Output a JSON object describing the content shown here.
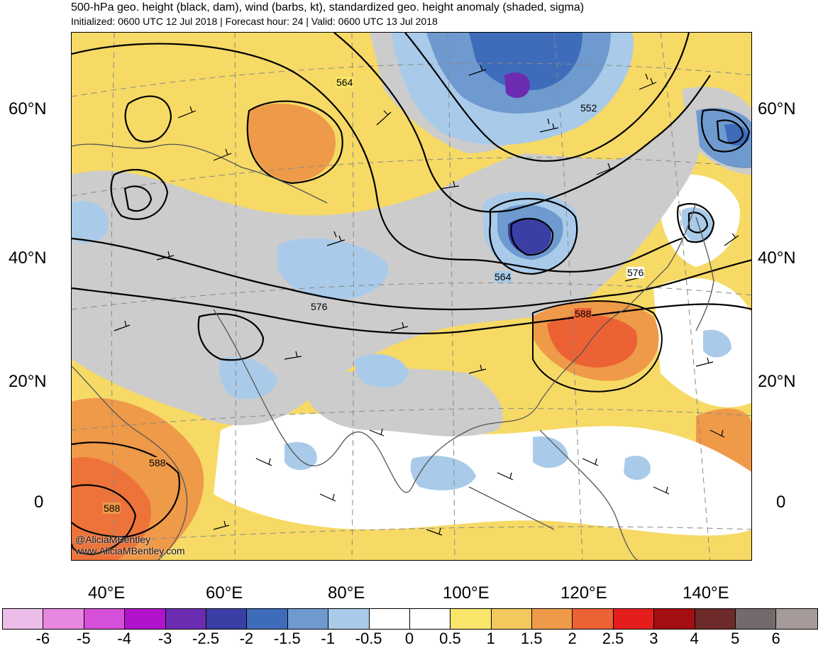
{
  "header": {
    "title": "500-hPa geo. height (black, dam), wind (barbs, kt), standardized geo. height anomaly (shaded, sigma)",
    "subtitle": "Initialized: 0600 UTC 12 Jul 2018 | Forecast hour: 24 | Valid: 0600 UTC 13 Jul 2018"
  },
  "map": {
    "lat_labels_left": [
      "60°N",
      "40°N",
      "20°N",
      "0"
    ],
    "lat_labels_right": [
      "60°N",
      "40°N",
      "20°N",
      "0"
    ],
    "lon_labels": [
      "40°E",
      "60°E",
      "80°E",
      "100°E",
      "120°E",
      "140°E"
    ],
    "contour_labels": [
      "564",
      "552",
      "564",
      "576",
      "576",
      "588",
      "588",
      "588"
    ],
    "watermark_lines": [
      "@AliciaMBentley",
      "www.AliciaMBentley.com"
    ]
  },
  "colorbar": {
    "labels": [
      "-6",
      "-5",
      "-4",
      "-3",
      "-2.5",
      "-2",
      "-1.5",
      "-1",
      "-0.5",
      "0",
      "0.5",
      "1",
      "1.5",
      "2",
      "2.5",
      "3",
      "4",
      "5",
      "6"
    ],
    "colors": [
      "#ebbde8",
      "#e787e0",
      "#d54fd8",
      "#b113cc",
      "#6d2bb2",
      "#3b3fa5",
      "#3e6cbb",
      "#6e9ad0",
      "#a9cbe9",
      "#ffffff",
      "#ffffff",
      "#f9e66b",
      "#f3c85c",
      "#ef9a49",
      "#ec6234",
      "#e51d1d",
      "#a50e12",
      "#6e2a2a",
      "#736b6b",
      "#a79a9a"
    ]
  }
}
